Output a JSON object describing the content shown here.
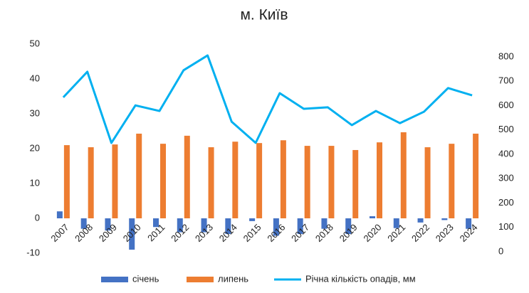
{
  "chart_data": {
    "type": "bar_line",
    "title": "м. Київ",
    "categories": [
      "2007",
      "2008",
      "2009",
      "2010",
      "2011",
      "2012",
      "2013",
      "2014",
      "2015",
      "2016",
      "2017",
      "2018",
      "2019",
      "2020",
      "2021",
      "2022",
      "2023",
      "2024"
    ],
    "series": [
      {
        "name": "січень",
        "color": "#4472c4",
        "type": "bar",
        "values": [
          2,
          -3,
          -3.5,
          -9,
          -2.5,
          -4,
          -4,
          -4.5,
          -0.8,
          -5,
          -4.5,
          -3,
          -4.5,
          0.6,
          -2.8,
          -1.2,
          -0.5,
          -3
        ]
      },
      {
        "name": "липень",
        "color": "#ed7d31",
        "type": "bar",
        "values": [
          21,
          20.4,
          21.2,
          24.3,
          21.4,
          23.7,
          20.4,
          22,
          21.6,
          22.4,
          20.8,
          20.8,
          19.6,
          21.8,
          24.7,
          20.4,
          21.4,
          24.3
        ]
      },
      {
        "name": "Річна кількість опадів, мм",
        "color": "#00b0f0",
        "type": "line",
        "axis": "y2",
        "values": [
          634,
          739,
          447,
          601,
          578,
          745,
          806,
          534,
          447,
          651,
          587,
          593,
          520,
          578,
          528,
          575,
          672,
          642
        ]
      }
    ],
    "ylim": [
      -10,
      50
    ],
    "yticks": [
      -10,
      0,
      10,
      20,
      30,
      40,
      50
    ],
    "y2lim": [
      0,
      800
    ],
    "y2ticks": [
      0,
      100,
      200,
      300,
      400,
      500,
      600,
      700,
      800
    ],
    "legend": "bottom"
  }
}
